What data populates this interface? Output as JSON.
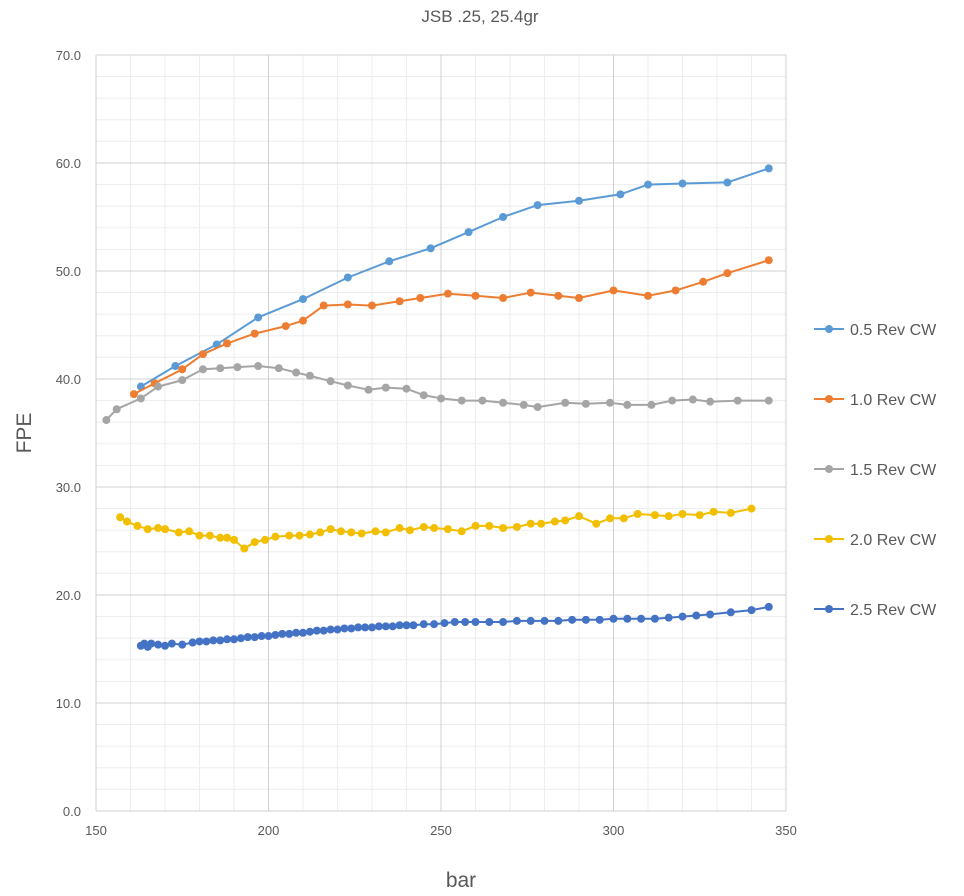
{
  "chart_data": {
    "type": "line",
    "title": "JSB .25, 25.4gr",
    "xlabel": "bar",
    "ylabel": "FPE",
    "xlim": [
      150,
      350
    ],
    "ylim": [
      0,
      70
    ],
    "x_ticks": [
      "150",
      "200",
      "250",
      "300",
      "350"
    ],
    "y_ticks": [
      "0.0",
      "10.0",
      "20.0",
      "30.0",
      "40.0",
      "50.0",
      "60.0",
      "70.0"
    ],
    "grid": true,
    "legend_position": "right",
    "series": [
      {
        "name": "0.5 Rev CW",
        "color": "#5B9BD5",
        "points": [
          [
            163,
            39.3
          ],
          [
            173,
            41.2
          ],
          [
            185,
            43.2
          ],
          [
            197,
            45.7
          ],
          [
            210,
            47.4
          ],
          [
            223,
            49.4
          ],
          [
            235,
            50.9
          ],
          [
            247,
            52.1
          ],
          [
            258,
            53.6
          ],
          [
            268,
            55.0
          ],
          [
            278,
            56.1
          ],
          [
            290,
            56.5
          ],
          [
            302,
            57.1
          ],
          [
            310,
            58.0
          ],
          [
            320,
            58.1
          ],
          [
            333,
            58.2
          ],
          [
            345,
            59.5
          ]
        ]
      },
      {
        "name": "1.0 Rev CW",
        "color": "#ED7D31",
        "points": [
          [
            161,
            38.6
          ],
          [
            167,
            39.6
          ],
          [
            175,
            40.9
          ],
          [
            181,
            42.3
          ],
          [
            188,
            43.3
          ],
          [
            196,
            44.2
          ],
          [
            205,
            44.9
          ],
          [
            210,
            45.4
          ],
          [
            216,
            46.8
          ],
          [
            223,
            46.9
          ],
          [
            230,
            46.8
          ],
          [
            238,
            47.2
          ],
          [
            244,
            47.5
          ],
          [
            252,
            47.9
          ],
          [
            260,
            47.7
          ],
          [
            268,
            47.5
          ],
          [
            276,
            48.0
          ],
          [
            284,
            47.7
          ],
          [
            290,
            47.5
          ],
          [
            300,
            48.2
          ],
          [
            310,
            47.7
          ],
          [
            318,
            48.2
          ],
          [
            326,
            49.0
          ],
          [
            333,
            49.8
          ],
          [
            345,
            51.0
          ]
        ]
      },
      {
        "name": "1.5 Rev CW",
        "color": "#A5A5A5",
        "points": [
          [
            153,
            36.2
          ],
          [
            156,
            37.2
          ],
          [
            163,
            38.2
          ],
          [
            168,
            39.3
          ],
          [
            175,
            39.9
          ],
          [
            181,
            40.9
          ],
          [
            186,
            41.0
          ],
          [
            191,
            41.1
          ],
          [
            197,
            41.2
          ],
          [
            203,
            41.0
          ],
          [
            208,
            40.6
          ],
          [
            212,
            40.3
          ],
          [
            218,
            39.8
          ],
          [
            223,
            39.4
          ],
          [
            229,
            39.0
          ],
          [
            234,
            39.2
          ],
          [
            240,
            39.1
          ],
          [
            245,
            38.5
          ],
          [
            250,
            38.2
          ],
          [
            256,
            38.0
          ],
          [
            262,
            38.0
          ],
          [
            268,
            37.8
          ],
          [
            274,
            37.6
          ],
          [
            278,
            37.4
          ],
          [
            286,
            37.8
          ],
          [
            292,
            37.7
          ],
          [
            299,
            37.8
          ],
          [
            304,
            37.6
          ],
          [
            311,
            37.6
          ],
          [
            317,
            38.0
          ],
          [
            323,
            38.1
          ],
          [
            328,
            37.9
          ],
          [
            336,
            38.0
          ],
          [
            345,
            38.0
          ]
        ]
      },
      {
        "name": "2.0 Rev CW",
        "color": "#F2BF00",
        "points": [
          [
            157,
            27.2
          ],
          [
            159,
            26.8
          ],
          [
            162,
            26.4
          ],
          [
            165,
            26.1
          ],
          [
            168,
            26.2
          ],
          [
            170,
            26.1
          ],
          [
            174,
            25.8
          ],
          [
            177,
            25.9
          ],
          [
            180,
            25.5
          ],
          [
            183,
            25.5
          ],
          [
            186,
            25.3
          ],
          [
            188,
            25.3
          ],
          [
            190,
            25.1
          ],
          [
            193,
            24.3
          ],
          [
            196,
            24.9
          ],
          [
            199,
            25.1
          ],
          [
            202,
            25.4
          ],
          [
            206,
            25.5
          ],
          [
            209,
            25.5
          ],
          [
            212,
            25.6
          ],
          [
            215,
            25.8
          ],
          [
            218,
            26.1
          ],
          [
            221,
            25.9
          ],
          [
            224,
            25.8
          ],
          [
            227,
            25.7
          ],
          [
            231,
            25.9
          ],
          [
            234,
            25.8
          ],
          [
            238,
            26.2
          ],
          [
            241,
            26.0
          ],
          [
            245,
            26.3
          ],
          [
            248,
            26.2
          ],
          [
            252,
            26.1
          ],
          [
            256,
            25.9
          ],
          [
            260,
            26.4
          ],
          [
            264,
            26.4
          ],
          [
            268,
            26.2
          ],
          [
            272,
            26.3
          ],
          [
            276,
            26.6
          ],
          [
            279,
            26.6
          ],
          [
            283,
            26.8
          ],
          [
            286,
            26.9
          ],
          [
            290,
            27.3
          ],
          [
            295,
            26.6
          ],
          [
            299,
            27.1
          ],
          [
            303,
            27.1
          ],
          [
            307,
            27.5
          ],
          [
            312,
            27.4
          ],
          [
            316,
            27.3
          ],
          [
            320,
            27.5
          ],
          [
            325,
            27.4
          ],
          [
            329,
            27.7
          ],
          [
            334,
            27.6
          ],
          [
            340,
            28.0
          ]
        ]
      },
      {
        "name": "2.5 Rev CW",
        "color": "#4472C4",
        "points": [
          [
            163,
            15.3
          ],
          [
            164,
            15.5
          ],
          [
            165,
            15.2
          ],
          [
            166,
            15.5
          ],
          [
            168,
            15.4
          ],
          [
            170,
            15.3
          ],
          [
            172,
            15.5
          ],
          [
            175,
            15.4
          ],
          [
            178,
            15.6
          ],
          [
            180,
            15.7
          ],
          [
            182,
            15.7
          ],
          [
            184,
            15.8
          ],
          [
            186,
            15.8
          ],
          [
            188,
            15.9
          ],
          [
            190,
            15.9
          ],
          [
            192,
            16.0
          ],
          [
            194,
            16.1
          ],
          [
            196,
            16.1
          ],
          [
            198,
            16.2
          ],
          [
            200,
            16.2
          ],
          [
            202,
            16.3
          ],
          [
            204,
            16.4
          ],
          [
            206,
            16.4
          ],
          [
            208,
            16.5
          ],
          [
            210,
            16.5
          ],
          [
            212,
            16.6
          ],
          [
            214,
            16.7
          ],
          [
            216,
            16.7
          ],
          [
            218,
            16.8
          ],
          [
            220,
            16.8
          ],
          [
            222,
            16.9
          ],
          [
            224,
            16.9
          ],
          [
            226,
            17.0
          ],
          [
            228,
            17.0
          ],
          [
            230,
            17.0
          ],
          [
            232,
            17.1
          ],
          [
            234,
            17.1
          ],
          [
            236,
            17.1
          ],
          [
            238,
            17.2
          ],
          [
            240,
            17.2
          ],
          [
            242,
            17.2
          ],
          [
            245,
            17.3
          ],
          [
            248,
            17.3
          ],
          [
            251,
            17.4
          ],
          [
            254,
            17.5
          ],
          [
            257,
            17.5
          ],
          [
            260,
            17.5
          ],
          [
            264,
            17.5
          ],
          [
            268,
            17.5
          ],
          [
            272,
            17.6
          ],
          [
            276,
            17.6
          ],
          [
            280,
            17.6
          ],
          [
            284,
            17.6
          ],
          [
            288,
            17.7
          ],
          [
            292,
            17.7
          ],
          [
            296,
            17.7
          ],
          [
            300,
            17.8
          ],
          [
            304,
            17.8
          ],
          [
            308,
            17.8
          ],
          [
            312,
            17.8
          ],
          [
            316,
            17.9
          ],
          [
            320,
            18.0
          ],
          [
            324,
            18.1
          ],
          [
            328,
            18.2
          ],
          [
            334,
            18.4
          ],
          [
            340,
            18.6
          ],
          [
            345,
            18.9
          ]
        ]
      }
    ]
  }
}
